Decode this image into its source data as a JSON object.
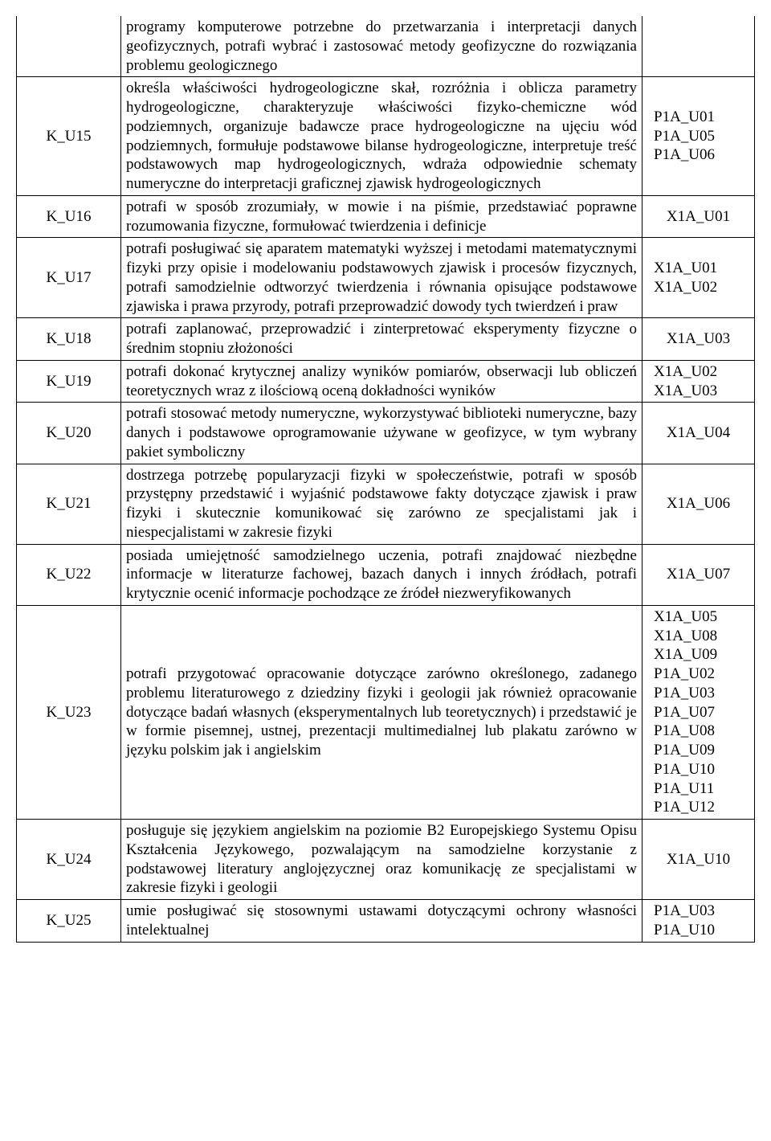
{
  "rows": [
    {
      "code": "",
      "desc": "programy komputerowe potrzebne do przetwarzania i interpretacji danych geofizycznych, potrafi wybrać i zastosować metody geofizyczne do rozwiązania problemu geologicznego",
      "refs": [],
      "noTop": true
    },
    {
      "code": "K_U15",
      "desc": "określa właściwości hydrogeologiczne skał, rozróżnia i oblicza parametry hydrogeologiczne, charakteryzuje właściwości fizyko-chemiczne wód podziemnych, organizuje badawcze prace hydrogeologiczne na ujęciu wód podziemnych, formułuje podstawowe bilanse hydrogeologiczne, interpretuje treść podstawowych map hydrogeologicznych, wdraża odpowiednie schematy numeryczne do interpretacji graficznej zjawisk hydrogeologicznych",
      "refs": [
        "P1A_U01",
        "P1A_U05",
        "P1A_U06"
      ]
    },
    {
      "code": "K_U16",
      "desc": "potrafi w sposób zrozumiały, w mowie i na piśmie, przedstawiać poprawne rozumowania fizyczne, formułować twierdzenia i definicje",
      "refs": [
        "X1A_U01"
      ],
      "refCenter": true
    },
    {
      "code": "K_U17",
      "desc": "potrafi posługiwać się aparatem matematyki wyższej i metodami matematycznymi fizyki przy opisie i modelowaniu podstawowych zjawisk i procesów fizycznych, potrafi samodzielnie odtworzyć twierdzenia i równania opisujące podstawowe zjawiska i prawa przyrody, potrafi przeprowadzić dowody tych twierdzeń i praw",
      "refs": [
        "X1A_U01",
        "X1A_U02"
      ]
    },
    {
      "code": "K_U18",
      "desc": "potrafi zaplanować, przeprowadzić i zinterpretować eksperymenty fizyczne o średnim stopniu złożoności",
      "refs": [
        "X1A_U03"
      ],
      "refCenter": true
    },
    {
      "code": "K_U19",
      "desc": "potrafi dokonać krytycznej analizy wyników pomiarów, obserwacji lub obliczeń teoretycznych wraz z ilościową oceną dokładności wyników",
      "refs": [
        "X1A_U02",
        "X1A_U03"
      ]
    },
    {
      "code": "K_U20",
      "desc": "potrafi stosować metody numeryczne, wykorzystywać biblioteki numeryczne, bazy danych i  podstawowe oprogramowanie używane w geofizyce, w tym wybrany pakiet symboliczny",
      "refs": [
        "X1A_U04"
      ],
      "refCenter": true
    },
    {
      "code": "K_U21",
      "desc": "dostrzega potrzebę popularyzacji fizyki w społeczeństwie, potrafi w sposób przystępny przedstawić i wyjaśnić podstawowe fakty dotyczące zjawisk i praw fizyki i skutecznie komunikować się zarówno ze specjalistami jak i niespecjalistami w zakresie fizyki",
      "refs": [
        "X1A_U06"
      ],
      "refCenter": true
    },
    {
      "code": "K_U22",
      "desc": "posiada umiejętność samodzielnego uczenia, potrafi znajdować niezbędne informacje w literaturze fachowej, bazach danych i innych źródłach, potrafi krytycznie ocenić informacje pochodzące ze źródeł niezweryfikowanych",
      "refs": [
        "X1A_U07"
      ],
      "refCenter": true
    },
    {
      "code": "K_U23",
      "desc": "potrafi przygotować  opracowanie dotyczące zarówno określonego, zadanego problemu literaturowego z dziedziny fizyki i geologii jak również opracowanie dotyczące badań własnych (eksperymentalnych lub teoretycznych) i przedstawić je w formie pisemnej, ustnej, prezentacji multimedialnej lub plakatu zarówno w języku polskim jak i angielskim",
      "refs": [
        "X1A_U05",
        "X1A_U08",
        "X1A_U09",
        "P1A_U02",
        "P1A_U03",
        "P1A_U07",
        "P1A_U08",
        "P1A_U09",
        "P1A_U10",
        "P1A_U11",
        "P1A_U12"
      ]
    },
    {
      "code": "K_U24",
      "desc": "posługuje się językiem angielskim na poziomie B2 Europejskiego Systemu Opisu Kształcenia Językowego, pozwalającym  na samodzielne korzystanie z podstawowej literatury anglojęzycznej oraz komunikację ze specjalistami w zakresie fizyki i geologii",
      "refs": [
        "X1A_U10"
      ],
      "refCenter": true
    },
    {
      "code": "K_U25",
      "desc": "umie posługiwać się stosownymi ustawami dotyczącymi ochrony własności intelektualnej",
      "refs": [
        "P1A_U03",
        "P1A_U10"
      ]
    }
  ]
}
